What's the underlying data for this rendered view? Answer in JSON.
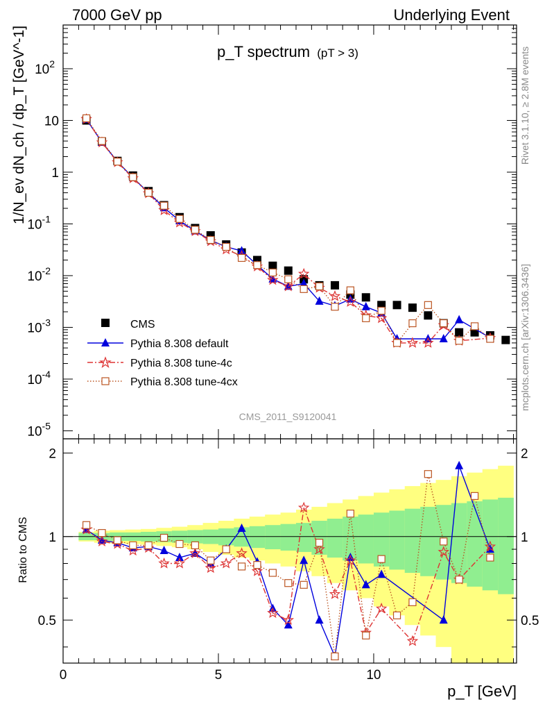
{
  "header": {
    "left": "7000 GeV pp",
    "right": "Underlying Event"
  },
  "side": {
    "rivet": "Rivet 3.1.10, ≥ 2.8M events",
    "mcplots": "mcplots.cern.ch [arXiv:1306.3436]"
  },
  "chart_data": [
    {
      "type": "scatter",
      "title": "p_T spectrum",
      "title_cut": "(pT > 3)",
      "analysis_label": "CMS_2011_S9120041",
      "xlabel": "p_T [GeV]",
      "ylabel": "1/N_ev dN_ch / dp_T [GeV^-1]",
      "yscale": "log",
      "xlim": [
        0,
        14.6
      ],
      "ylim": [
        7e-06,
        700
      ],
      "y_tick_labels": [
        "10^-5",
        "10^-4",
        "10^-3",
        "10^-2",
        "10^-1",
        "1",
        "10",
        "10^2"
      ],
      "legend_position": "lower-left",
      "series": [
        {
          "name": "CMS",
          "color": "#000000",
          "x": [
            0.75,
            1.25,
            1.75,
            2.25,
            2.75,
            3.25,
            3.75,
            4.25,
            4.75,
            5.25,
            5.75,
            6.25,
            6.75,
            7.25,
            7.75,
            8.25,
            8.75,
            9.25,
            9.75,
            10.25,
            10.75,
            11.25,
            11.75,
            12.25,
            12.75,
            13.25,
            13.75,
            14.25
          ],
          "y": [
            10.0,
            3.9,
            1.65,
            0.86,
            0.43,
            0.23,
            0.135,
            0.083,
            0.06,
            0.04,
            0.028,
            0.02,
            0.0155,
            0.0125,
            0.0085,
            0.0065,
            0.0065,
            0.0043,
            0.0038,
            0.0027,
            0.0027,
            0.0024,
            0.0017,
            0.0012,
            0.0008,
            0.0008,
            0.0007,
            0.00057
          ]
        },
        {
          "name": "Pythia 8.308 default",
          "color": "#0000dd",
          "x": [
            0.75,
            1.25,
            1.75,
            2.25,
            2.75,
            3.25,
            3.75,
            4.25,
            4.75,
            5.25,
            5.75,
            6.25,
            6.75,
            7.25,
            7.75,
            8.25,
            8.75,
            9.25,
            9.75,
            10.25,
            10.75,
            11.75,
            12.25,
            12.75,
            13.75
          ],
          "y": [
            10.5,
            3.8,
            1.6,
            0.78,
            0.4,
            0.205,
            0.115,
            0.073,
            0.048,
            0.036,
            0.03,
            0.016,
            0.0086,
            0.0062,
            0.007,
            0.0032,
            0.0026,
            0.0035,
            0.0025,
            0.0019,
            0.0006,
            0.0006,
            0.0006,
            0.0014,
            0.00063
          ]
        },
        {
          "name": "Pythia 8.308 tune-4c",
          "color": "#dd3333",
          "x": [
            0.75,
            1.25,
            1.75,
            2.25,
            2.75,
            3.25,
            3.75,
            4.25,
            4.75,
            5.25,
            5.75,
            6.25,
            6.75,
            7.25,
            7.75,
            8.25,
            8.75,
            9.25,
            9.75,
            10.25,
            10.75,
            11.25,
            11.75,
            12.25,
            12.75,
            13.75
          ],
          "y": [
            10.6,
            3.75,
            1.55,
            0.76,
            0.39,
            0.183,
            0.106,
            0.072,
            0.046,
            0.032,
            0.024,
            0.015,
            0.0082,
            0.0062,
            0.0108,
            0.0058,
            0.004,
            0.0031,
            0.0017,
            0.0015,
            0.0005,
            0.0005,
            0.0005,
            0.0011,
            0.00055,
            0.00062
          ]
        },
        {
          "name": "Pythia 8.308 tune-4cx",
          "color": "#bb5522",
          "x": [
            0.75,
            1.25,
            1.75,
            2.25,
            2.75,
            3.25,
            3.75,
            4.25,
            4.75,
            5.25,
            5.75,
            6.25,
            6.75,
            7.25,
            7.75,
            8.25,
            8.75,
            9.25,
            9.75,
            10.25,
            10.75,
            11.25,
            11.75,
            12.25,
            12.75,
            13.25,
            13.75
          ],
          "y": [
            11.0,
            4.0,
            1.6,
            0.8,
            0.4,
            0.225,
            0.125,
            0.077,
            0.049,
            0.036,
            0.022,
            0.016,
            0.0115,
            0.0085,
            0.0055,
            0.0062,
            0.0025,
            0.0052,
            0.0015,
            0.0021,
            0.0005,
            0.0012,
            0.0027,
            0.0012,
            0.00055,
            0.00105,
            0.0006
          ]
        }
      ]
    },
    {
      "type": "scatter",
      "ylabel": "Ratio to CMS",
      "xlabel": "p_T [GeV]",
      "xlim": [
        0,
        14.6
      ],
      "ylim": [
        0.35,
        2.25
      ],
      "x_tick_labels": [
        "0",
        "5",
        "10"
      ],
      "y_tick_labels": [
        "0.5",
        "1",
        "2"
      ],
      "reference_line": 1,
      "uncertainty_bands": {
        "x_edges": [
          0.5,
          1.0,
          1.5,
          2.0,
          2.5,
          3.0,
          3.5,
          4.0,
          4.5,
          5.0,
          5.5,
          6.0,
          6.5,
          7.0,
          7.5,
          8.0,
          8.5,
          9.0,
          9.5,
          10.0,
          10.5,
          11.0,
          11.5,
          12.0,
          12.5,
          13.0,
          13.5,
          14.0,
          14.5
        ],
        "green_half_width": [
          0.03,
          0.03,
          0.035,
          0.035,
          0.04,
          0.045,
          0.05,
          0.055,
          0.06,
          0.07,
          0.08,
          0.09,
          0.1,
          0.11,
          0.12,
          0.14,
          0.16,
          0.18,
          0.2,
          0.22,
          0.24,
          0.26,
          0.28,
          0.3,
          0.32,
          0.34,
          0.36,
          0.38
        ],
        "yellow_half_width": [
          0.04,
          0.05,
          0.055,
          0.06,
          0.065,
          0.075,
          0.085,
          0.1,
          0.12,
          0.14,
          0.16,
          0.18,
          0.2,
          0.22,
          0.25,
          0.28,
          0.32,
          0.36,
          0.4,
          0.44,
          0.48,
          0.52,
          0.56,
          0.6,
          0.65,
          0.7,
          0.75,
          0.8
        ],
        "green_color": "#90ee90",
        "yellow_color": "#ffff80"
      },
      "series": [
        {
          "name": "Pythia 8.308 default",
          "color": "#0000dd",
          "x": [
            0.75,
            1.25,
            1.75,
            2.25,
            2.75,
            3.25,
            3.75,
            4.25,
            4.75,
            5.25,
            5.75,
            6.25,
            6.75,
            7.25,
            7.75,
            8.25,
            8.75,
            9.25,
            9.75,
            10.25,
            12.25,
            12.75,
            13.75
          ],
          "y": [
            1.06,
            0.97,
            0.95,
            0.91,
            0.92,
            0.89,
            0.84,
            0.87,
            0.8,
            0.9,
            1.07,
            0.81,
            0.55,
            0.48,
            0.82,
            0.5,
            0.37,
            0.84,
            0.67,
            0.73,
            0.5,
            1.8,
            0.9
          ]
        },
        {
          "name": "Pythia 8.308 tune-4c",
          "color": "#dd3333",
          "x": [
            0.75,
            1.25,
            1.75,
            2.25,
            2.75,
            3.25,
            3.75,
            4.25,
            4.75,
            5.25,
            5.75,
            6.25,
            6.75,
            7.25,
            7.75,
            8.25,
            8.75,
            9.25,
            9.75,
            10.25,
            11.25,
            12.25,
            12.75,
            13.75
          ],
          "y": [
            1.06,
            0.96,
            0.94,
            0.89,
            0.91,
            0.8,
            0.8,
            0.87,
            0.77,
            0.8,
            0.87,
            0.75,
            0.53,
            0.5,
            1.27,
            0.9,
            0.62,
            0.82,
            0.45,
            0.55,
            0.42,
            0.88,
            0.7,
            0.92
          ]
        },
        {
          "name": "Pythia 8.308 tune-4cx",
          "color": "#bb5522",
          "x": [
            0.75,
            1.25,
            1.75,
            2.25,
            2.75,
            3.25,
            3.75,
            4.25,
            4.75,
            5.25,
            5.75,
            6.25,
            6.75,
            7.25,
            7.75,
            8.25,
            8.75,
            9.25,
            9.75,
            10.25,
            10.75,
            11.25,
            11.75,
            12.25,
            12.75,
            13.25,
            13.75
          ],
          "y": [
            1.1,
            1.03,
            0.97,
            0.93,
            0.93,
            0.99,
            0.94,
            0.93,
            0.82,
            0.9,
            0.78,
            0.79,
            0.74,
            0.68,
            0.67,
            0.95,
            0.37,
            1.21,
            0.44,
            0.83,
            0.52,
            0.58,
            1.68,
            0.96,
            0.7,
            1.4,
            0.84
          ]
        }
      ]
    }
  ]
}
